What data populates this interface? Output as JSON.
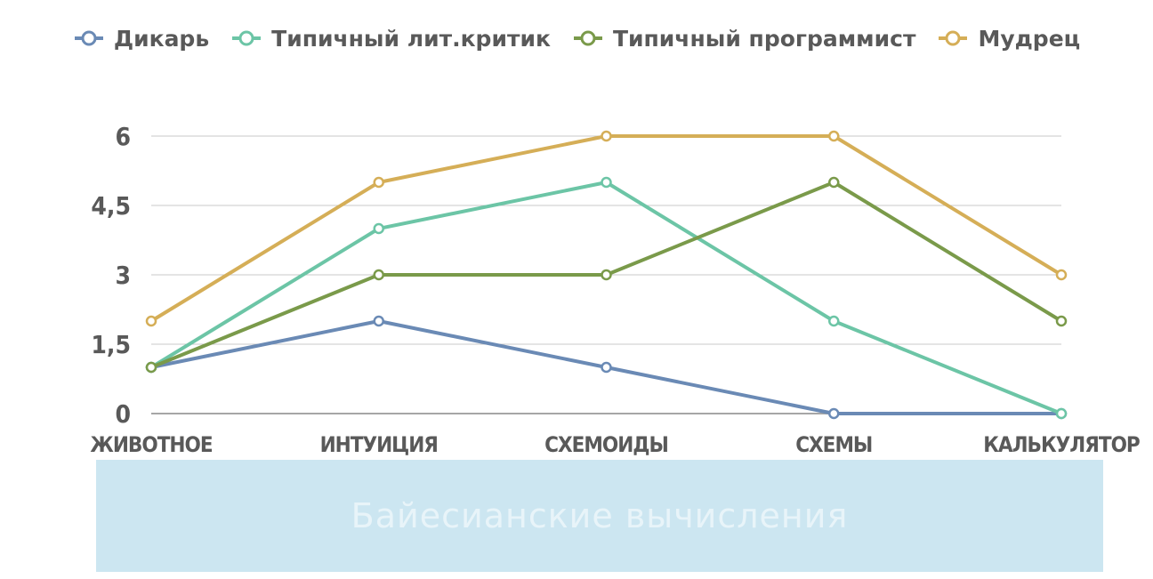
{
  "chart_data": {
    "type": "line",
    "categories": [
      "ЖИВОТНОЕ",
      "ИНТУИЦИЯ",
      "СХЕМОИДЫ",
      "СХЕМЫ",
      "КАЛЬКУЛЯТОР"
    ],
    "series": [
      {
        "name": "Дикарь",
        "values": [
          1,
          2,
          1,
          0,
          0
        ],
        "color": "#6a8ab5"
      },
      {
        "name": "Типичный лит.критик",
        "values": [
          1,
          4,
          5,
          2,
          0
        ],
        "color": "#6cc5a6"
      },
      {
        "name": "Типичный программист",
        "values": [
          1,
          3,
          3,
          5,
          2
        ],
        "color": "#7a9a4a"
      },
      {
        "name": "Мудрец",
        "values": [
          2,
          5,
          6,
          6,
          3
        ],
        "color": "#d5ae57"
      }
    ],
    "yticks": [
      "0",
      "1,5",
      "3",
      "4,5",
      "6"
    ],
    "ylim": [
      0,
      6
    ],
    "grid": true,
    "legend_position": "top"
  },
  "banner": {
    "text": "Байесианские вычисления"
  },
  "colors": {
    "grid": "#c8c8c8",
    "text": "#595959",
    "banner_bg": "#cce6f1"
  }
}
